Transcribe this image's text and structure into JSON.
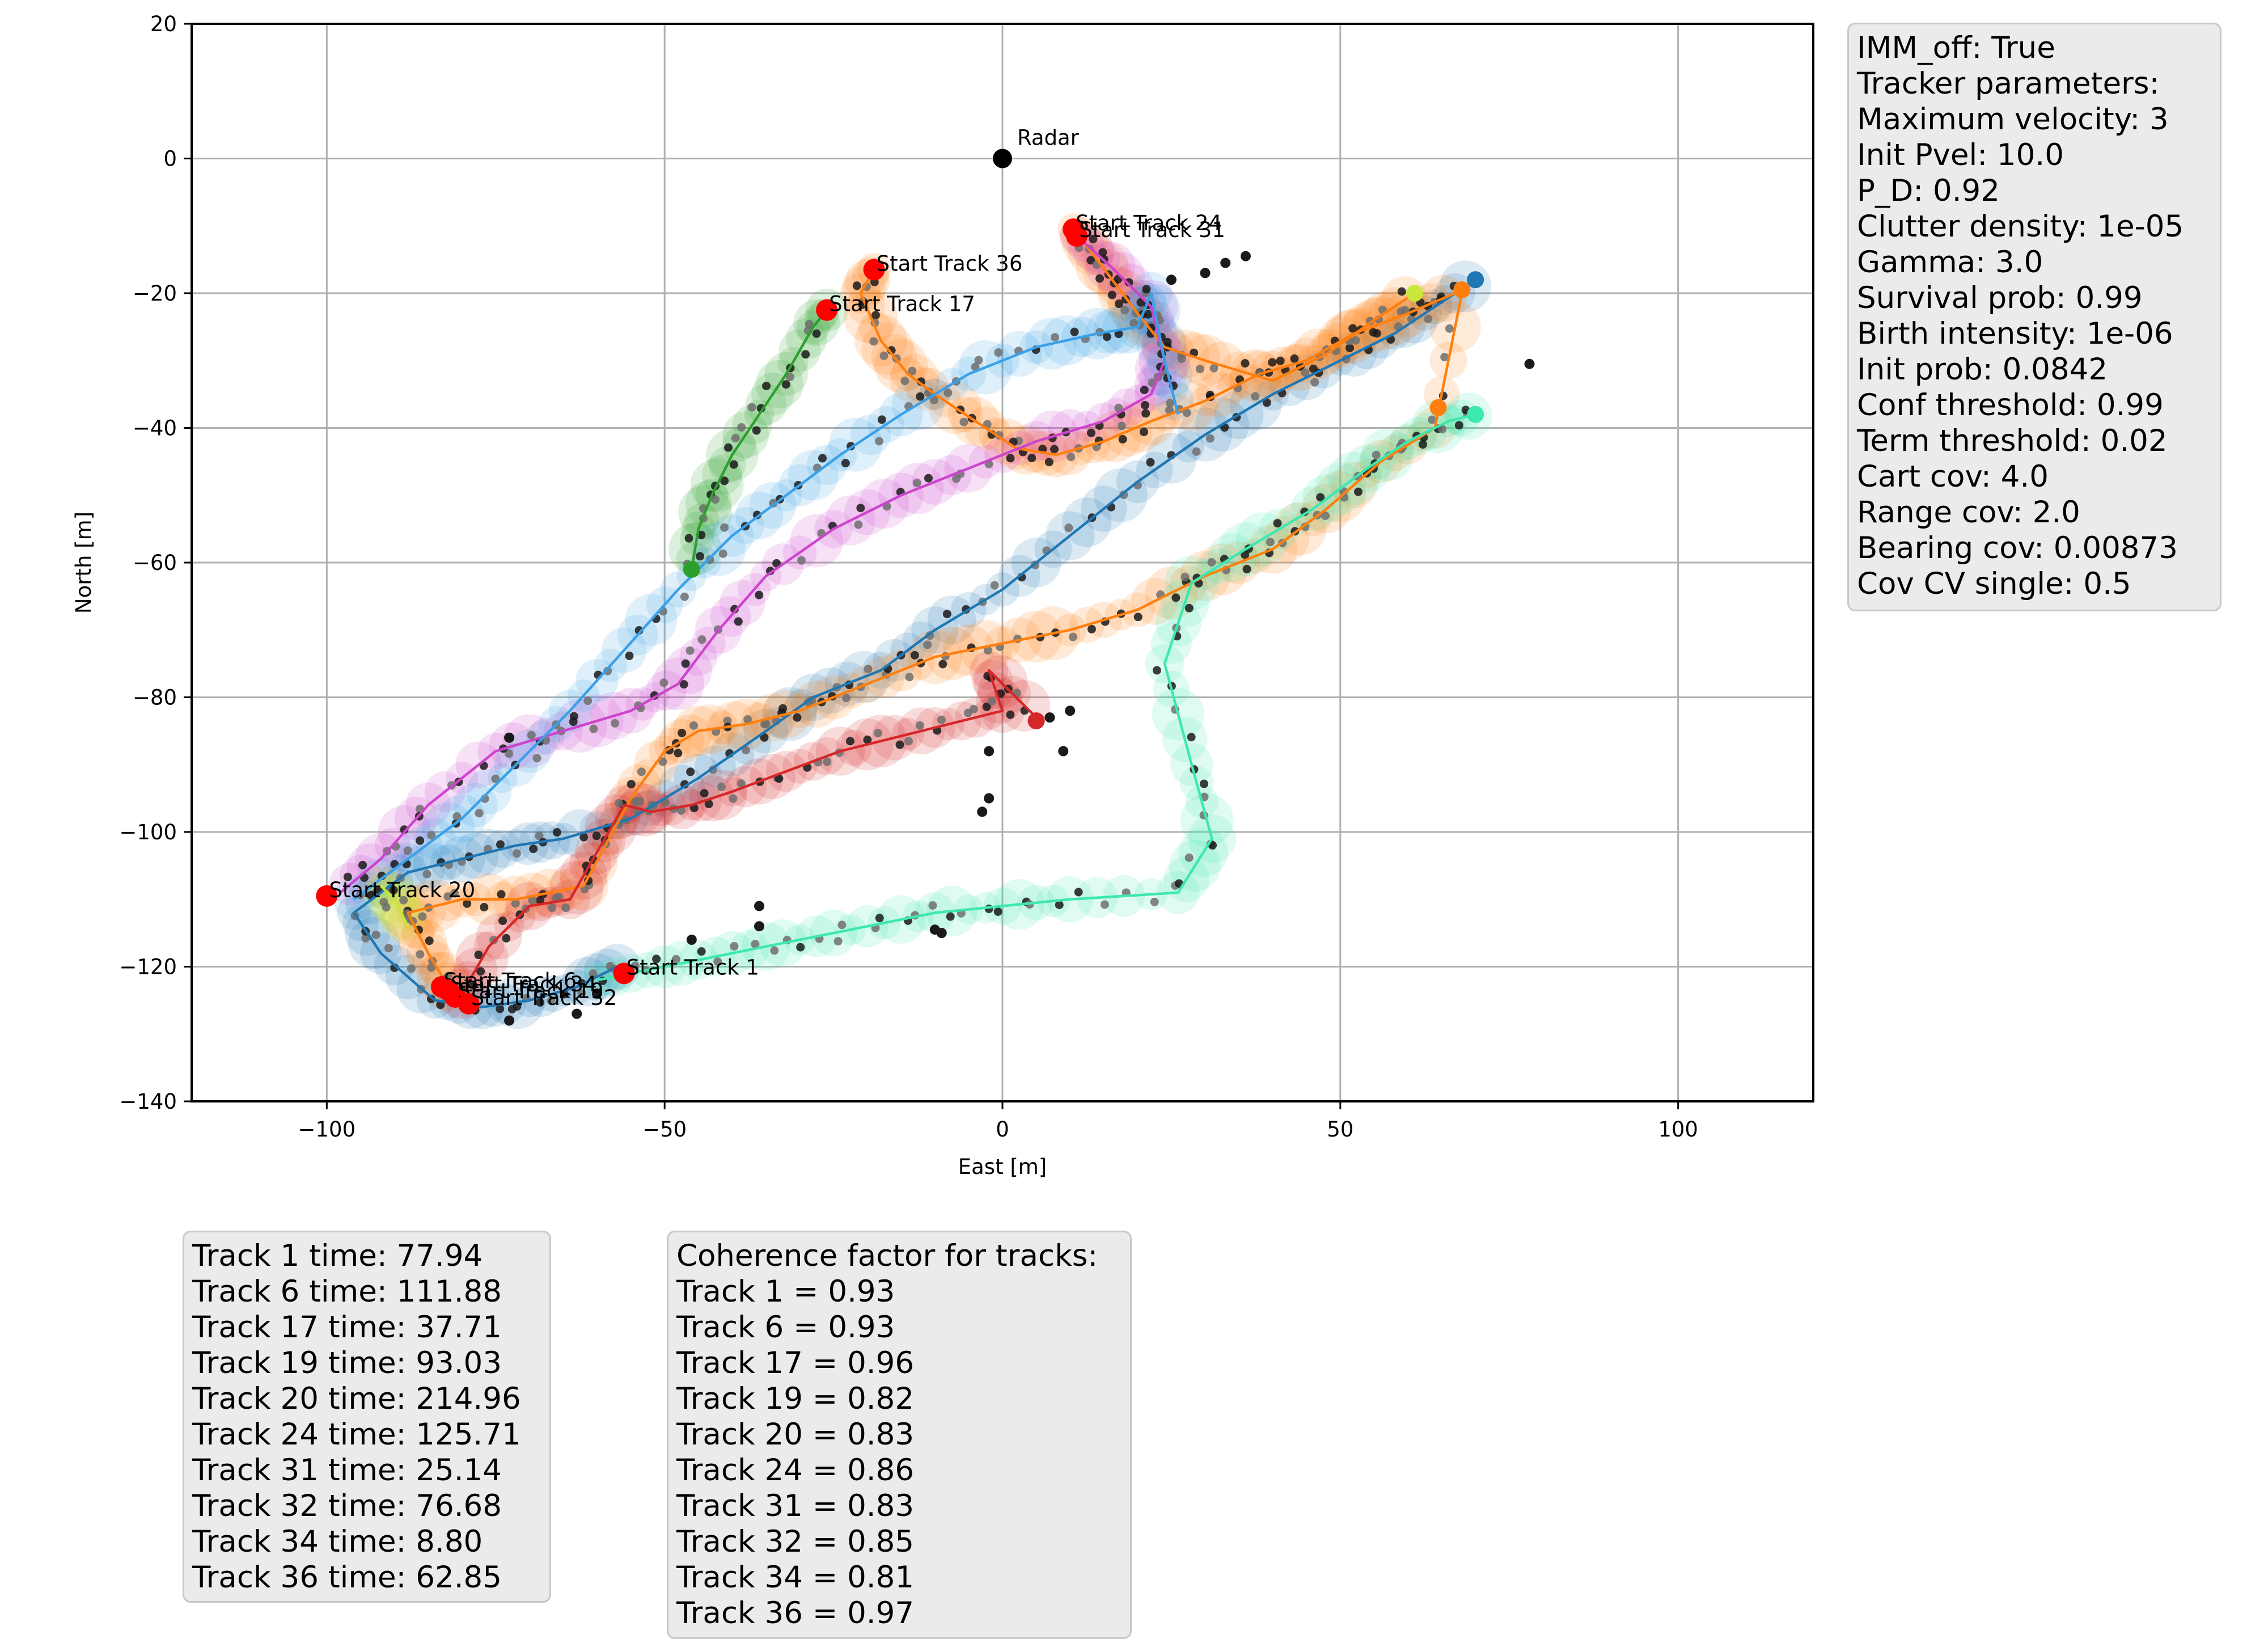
{
  "chart_data": {
    "type": "scatter",
    "title": "",
    "xlabel": "East [m]",
    "ylabel": "North [m]",
    "xlim": [
      -120,
      120
    ],
    "ylim": [
      -140,
      20
    ],
    "xticks": [
      -100,
      -50,
      0,
      50,
      100
    ],
    "yticks": [
      20,
      0,
      -20,
      -40,
      -60,
      -80,
      -100,
      -120,
      -140
    ],
    "xtick_labels": [
      "−100",
      "−50",
      "0",
      "50",
      "100"
    ],
    "ytick_labels": [
      "20",
      "0",
      "−20",
      "−40",
      "−60",
      "−80",
      "−100",
      "−120",
      "−140"
    ],
    "grid": true,
    "radar": {
      "label": "Radar",
      "x": 0,
      "y": 0
    },
    "start_markers": [
      {
        "label": "Start Track 24",
        "x": 10.5,
        "y": -10.5
      },
      {
        "label": "Start Track 31",
        "x": 11,
        "y": -11.5
      },
      {
        "label": "Start Track 36",
        "x": -19,
        "y": -16.5
      },
      {
        "label": "Start Track 17",
        "x": -26,
        "y": -22.5
      },
      {
        "label": "Start Track 20",
        "x": -100,
        "y": -109.5
      },
      {
        "label": "Start Track 1",
        "x": -56,
        "y": -121
      },
      {
        "label": "Start Track 6",
        "x": -83,
        "y": -123
      },
      {
        "label": "Start Track 34",
        "x": -82,
        "y": -123.5
      },
      {
        "label": "Start Track 19",
        "x": -81,
        "y": -124.5
      },
      {
        "label": "Start Track 32",
        "x": -79,
        "y": -125.5
      }
    ],
    "tracks": [
      {
        "color": "#1f77b4",
        "points": [
          [
            -57,
            -120
          ],
          [
            -63,
            -123
          ],
          [
            -70,
            -125
          ],
          [
            -77,
            -126
          ],
          [
            -84,
            -125
          ],
          [
            -92,
            -118
          ],
          [
            -96,
            -112
          ],
          [
            -88,
            -106
          ],
          [
            -80,
            -104
          ],
          [
            -72,
            -102
          ],
          [
            -65,
            -101
          ],
          [
            -55,
            -98
          ],
          [
            -45,
            -92
          ],
          [
            -35,
            -85
          ],
          [
            -28,
            -80
          ],
          [
            -18,
            -76
          ],
          [
            -10,
            -70
          ],
          [
            0,
            -64
          ],
          [
            10,
            -56
          ],
          [
            20,
            -48
          ],
          [
            30,
            -41
          ],
          [
            40,
            -35
          ],
          [
            50,
            -30
          ],
          [
            58,
            -26
          ],
          [
            64,
            -22
          ],
          [
            70,
            -18
          ]
        ]
      },
      {
        "color": "#ff7f0e",
        "points": [
          [
            -82,
            -123
          ],
          [
            -85,
            -118
          ],
          [
            -88,
            -112
          ],
          [
            -80,
            -110
          ],
          [
            -72,
            -110
          ],
          [
            -62,
            -108
          ],
          [
            -55,
            -95
          ],
          [
            -50,
            -88
          ],
          [
            -45,
            -85
          ],
          [
            -38,
            -84
          ],
          [
            -30,
            -82
          ],
          [
            -20,
            -78
          ],
          [
            -10,
            -74
          ],
          [
            0,
            -72
          ],
          [
            10,
            -70
          ],
          [
            20,
            -67
          ],
          [
            30,
            -62
          ],
          [
            40,
            -58
          ],
          [
            48,
            -52
          ],
          [
            56,
            -45
          ],
          [
            64,
            -40
          ],
          [
            68,
            -20
          ]
        ]
      },
      {
        "color": "#2ca02c",
        "points": [
          [
            -26,
            -22.5
          ],
          [
            -28,
            -25
          ],
          [
            -32,
            -32
          ],
          [
            -36,
            -38
          ],
          [
            -40,
            -44
          ],
          [
            -43,
            -50
          ],
          [
            -45,
            -55
          ],
          [
            -46,
            -61
          ]
        ]
      },
      {
        "color": "#d62728",
        "points": [
          [
            -80,
            -124
          ],
          [
            -76,
            -117
          ],
          [
            -70,
            -111
          ],
          [
            -64,
            -110
          ],
          [
            -60,
            -103
          ],
          [
            -56,
            -96
          ],
          [
            -52,
            -97
          ],
          [
            -46,
            -96
          ],
          [
            -40,
            -94
          ],
          [
            -32,
            -91
          ],
          [
            -24,
            -88
          ],
          [
            -16,
            -86
          ],
          [
            -8,
            -84
          ],
          [
            0,
            -82
          ],
          [
            -2,
            -76
          ],
          [
            5,
            -83
          ]
        ]
      },
      {
        "color": "#ff7f0e",
        "points": [
          [
            -19,
            -16.5
          ],
          [
            -21,
            -20
          ],
          [
            -18,
            -27
          ],
          [
            -14,
            -32
          ],
          [
            -10,
            -35
          ],
          [
            -4,
            -39
          ],
          [
            2,
            -43
          ],
          [
            8,
            -44
          ],
          [
            15,
            -42
          ],
          [
            22,
            -39
          ],
          [
            30,
            -36
          ],
          [
            38,
            -32
          ],
          [
            45,
            -30
          ],
          [
            52,
            -26
          ],
          [
            60,
            -23
          ],
          [
            67,
            -20
          ]
        ]
      },
      {
        "color": "#ff7f0e",
        "points": [
          [
            10.5,
            -10.5
          ],
          [
            14,
            -15
          ],
          [
            17,
            -19
          ],
          [
            20,
            -23
          ],
          [
            24,
            -28
          ],
          [
            30,
            -30
          ],
          [
            40,
            -33
          ],
          [
            48,
            -29
          ],
          [
            55,
            -24
          ],
          [
            61,
            -20
          ]
        ]
      },
      {
        "color": "#cc44cc",
        "points": [
          [
            11,
            -11.5
          ],
          [
            16,
            -16
          ],
          [
            22,
            -22
          ],
          [
            24,
            -30
          ],
          [
            22,
            -35
          ],
          [
            15,
            -39
          ],
          [
            5,
            -42
          ],
          [
            -5,
            -46
          ],
          [
            -15,
            -50
          ],
          [
            -25,
            -55
          ],
          [
            -35,
            -62
          ],
          [
            -42,
            -70
          ],
          [
            -48,
            -78
          ],
          [
            -55,
            -82
          ],
          [
            -65,
            -85
          ],
          [
            -75,
            -88
          ],
          [
            -85,
            -96
          ],
          [
            -92,
            -104
          ],
          [
            -98,
            -109
          ]
        ]
      },
      {
        "color": "#3aa0e8",
        "points": [
          [
            -96,
            -110
          ],
          [
            -88,
            -104
          ],
          [
            -80,
            -98
          ],
          [
            -72,
            -90
          ],
          [
            -64,
            -82
          ],
          [
            -56,
            -73
          ],
          [
            -48,
            -64
          ],
          [
            -40,
            -56
          ],
          [
            -32,
            -50
          ],
          [
            -24,
            -44
          ],
          [
            -15,
            -38
          ],
          [
            -5,
            -32
          ],
          [
            5,
            -28
          ],
          [
            14,
            -26
          ],
          [
            20,
            -25
          ],
          [
            22,
            -20
          ],
          [
            24,
            -30
          ],
          [
            26,
            -38
          ]
        ]
      },
      {
        "color": "#c8e63c",
        "points": [
          [
            -92,
            -108
          ],
          [
            -90,
            -110
          ],
          [
            -88,
            -114
          ]
        ]
      },
      {
        "color": "#3de8b0",
        "points": [
          [
            -60,
            -122
          ],
          [
            -50,
            -120
          ],
          [
            -40,
            -118
          ],
          [
            -30,
            -116
          ],
          [
            -20,
            -114
          ],
          [
            -10,
            -112
          ],
          [
            0,
            -111
          ],
          [
            10,
            -110
          ],
          [
            26,
            -109
          ],
          [
            31,
            -101
          ],
          [
            28,
            -90
          ],
          [
            24,
            -75
          ],
          [
            28,
            -63
          ],
          [
            36,
            -58
          ],
          [
            46,
            -52
          ],
          [
            54,
            -46
          ],
          [
            60,
            -42
          ],
          [
            66,
            -39
          ],
          [
            70,
            -38
          ]
        ]
      }
    ],
    "end_markers": [
      {
        "color": "#1f77b4",
        "x": 70,
        "y": -18
      },
      {
        "color": "#ff7f0e",
        "x": 68,
        "y": -19.5
      },
      {
        "color": "#c8e63c",
        "x": 61,
        "y": -20
      },
      {
        "color": "#ff7f0e",
        "x": 64.5,
        "y": -37
      },
      {
        "color": "#3de8b0",
        "x": 70,
        "y": -38
      },
      {
        "color": "#2ca02c",
        "x": -46,
        "y": -61
      },
      {
        "color": "#d62728",
        "x": 5,
        "y": -83.5
      }
    ]
  },
  "params_box": {
    "lines": [
      "IMM_off: True",
      "Tracker parameters:",
      "Maximum velocity: 3",
      "Init Pvel: 10.0",
      "P_D: 0.92",
      "Clutter density: 1e-05",
      "Gamma: 3.0",
      "Survival prob: 0.99",
      "Birth intensity: 1e-06",
      "Init prob: 0.0842",
      "Conf threshold: 0.99",
      "Term threshold: 0.02",
      "Cart cov: 4.0",
      "Range cov: 2.0",
      "Bearing cov: 0.00873",
      "Cov CV single: 0.5"
    ]
  },
  "times_box": {
    "lines": [
      "Track 1 time: 77.94",
      "Track 6 time: 111.88",
      "Track 17 time: 37.71",
      "Track 19 time: 93.03",
      "Track 20 time: 214.96",
      "Track 24 time: 125.71",
      "Track 31 time: 25.14",
      "Track 32 time: 76.68",
      "Track 34 time: 8.80",
      "Track 36 time: 62.85"
    ]
  },
  "coherence_box": {
    "lines": [
      "Coherence factor for tracks:",
      "Track 1 = 0.93",
      "Track 6 = 0.93",
      "Track 17 = 0.96",
      "Track 19 = 0.82",
      "Track 20 = 0.83",
      "Track 24 = 0.86",
      "Track 31 = 0.83",
      "Track 32 = 0.85",
      "Track 34 = 0.81",
      "Track 36 = 0.97"
    ]
  },
  "colors": {
    "start_marker": "#ff0000",
    "radar_marker": "#000000",
    "measurement_dark": "#1a1a1a",
    "measurement_gray": "#6e6e6e",
    "grid": "#b0b0b0",
    "box_bg": "#ebebeb"
  }
}
